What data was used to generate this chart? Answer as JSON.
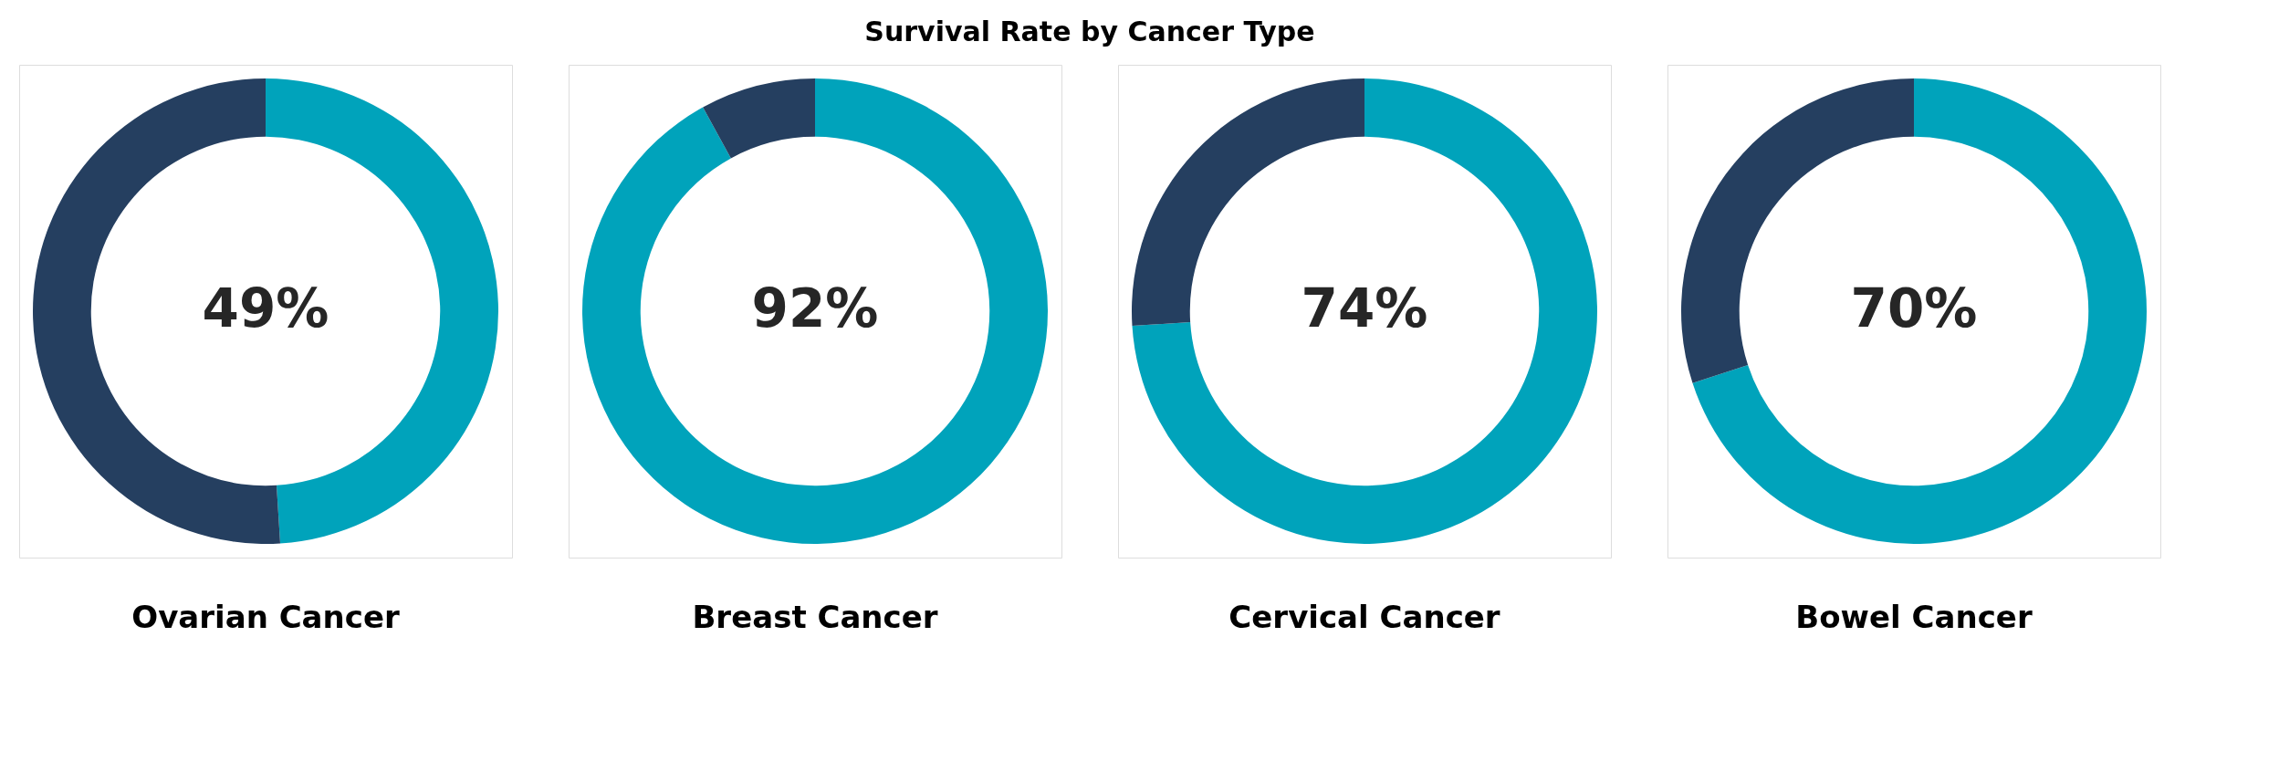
{
  "chart_data": [
    {
      "type": "donut",
      "title": "Survival Rate by Cancer Type",
      "xlabel": "Ovarian Cancer",
      "categories": [
        null,
        null
      ],
      "values": [
        49,
        51
      ],
      "colors": [
        "#00a3bb",
        "#253f60"
      ],
      "value_labels": [
        "49%",
        null
      ]
    },
    {
      "type": "donut",
      "xlabel": "Breast Cancer",
      "categories": [
        null,
        null
      ],
      "values": [
        92,
        8
      ],
      "colors": [
        "#00a3bb",
        "#253f60"
      ],
      "value_labels": [
        "92%",
        null
      ]
    },
    {
      "type": "donut",
      "xlabel": "Cervical Cancer",
      "categories": [
        null,
        null
      ],
      "values": [
        74,
        26
      ],
      "colors": [
        "#00a3bb",
        "#253f60"
      ],
      "value_labels": [
        "74%",
        null
      ]
    },
    {
      "type": "donut",
      "xlabel": "Bowel Cancer",
      "categories": [
        null,
        null
      ],
      "values": [
        70,
        30
      ],
      "colors": [
        "#00a3bb",
        "#253f60"
      ],
      "value_labels": [
        "70%",
        null
      ]
    }
  ]
}
